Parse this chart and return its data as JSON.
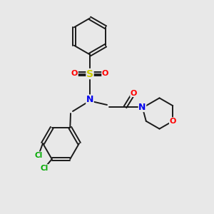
{
  "background_color": "#e8e8e8",
  "bond_color": "#1a1a1a",
  "colors": {
    "N": "#0000ee",
    "O": "#ff0000",
    "S": "#cccc00",
    "Cl": "#00aa00",
    "C": "#1a1a1a"
  },
  "figsize": [
    3.0,
    3.0
  ],
  "dpi": 100
}
